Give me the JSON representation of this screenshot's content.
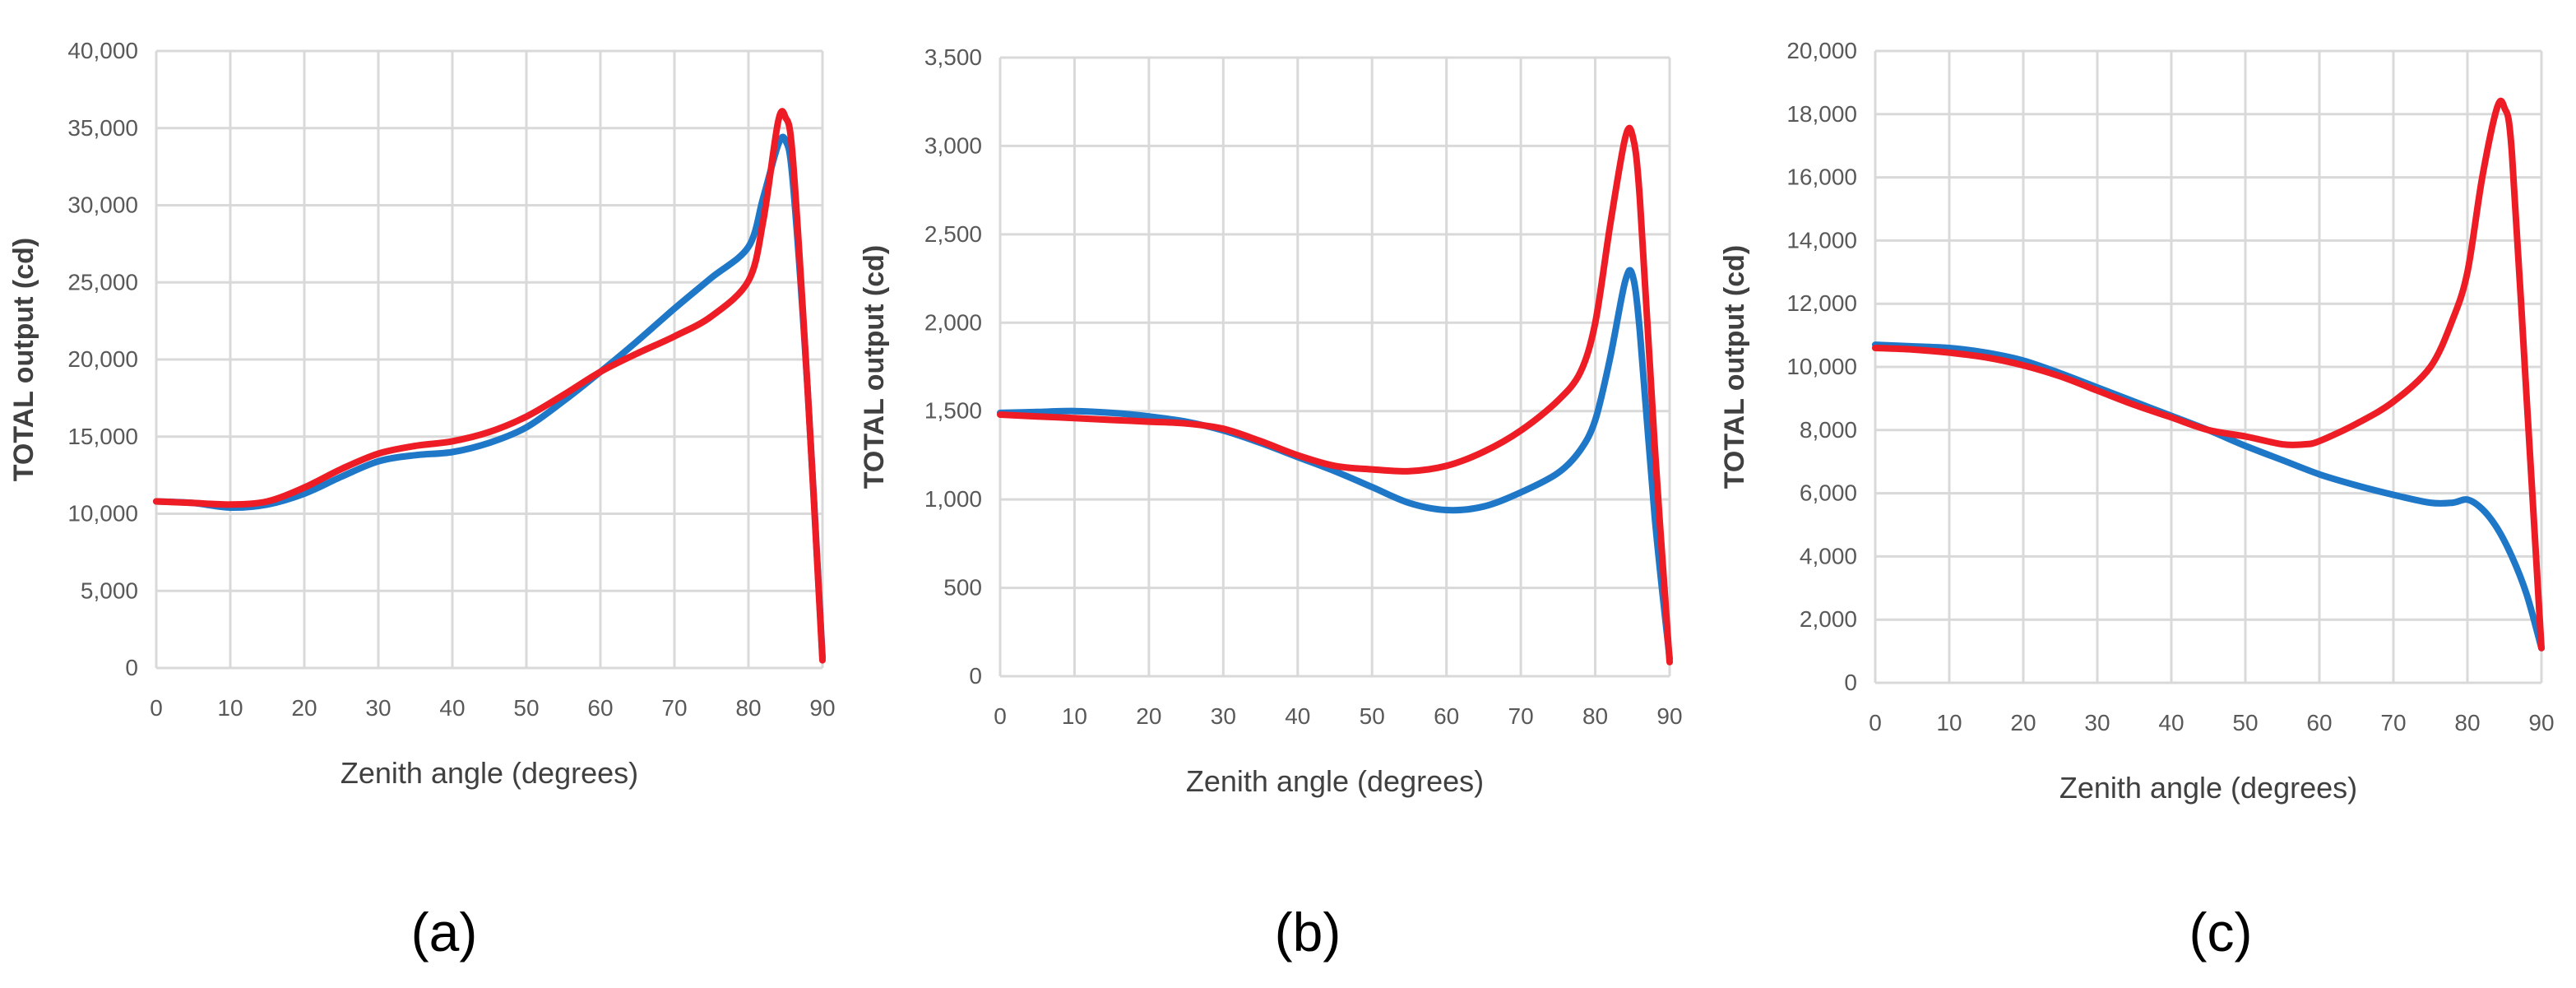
{
  "colors": {
    "blue": "#1f77c8",
    "red": "#ee1c25",
    "grid": "#d9d9d9",
    "tick_text": "#595959",
    "axis_title": "#404040"
  },
  "panel_labels": [
    "(a)",
    "(b)",
    "(c)"
  ],
  "chart_data": [
    {
      "type": "line",
      "xlabel": "Zenith angle (degrees)",
      "ylabel": "TOTAL output (cd)",
      "xlim": [
        0,
        90
      ],
      "ylim": [
        0,
        40000
      ],
      "xticks": [
        0,
        10,
        20,
        30,
        40,
        50,
        60,
        70,
        80,
        90
      ],
      "xtick_labels": [
        "0",
        "10",
        "20",
        "30",
        "40",
        "50",
        "60",
        "70",
        "80",
        "90"
      ],
      "yticks": [
        0,
        5000,
        10000,
        15000,
        20000,
        25000,
        30000,
        35000,
        40000
      ],
      "ytick_labels": [
        "0",
        "5,000",
        "10,000",
        "15,000",
        "20,000",
        "25,000",
        "30,000",
        "35,000",
        "40,000"
      ],
      "grid": true,
      "series": [
        {
          "color": "#1f77c8",
          "x": [
            0,
            5,
            10,
            15,
            20,
            25,
            30,
            35,
            40,
            45,
            50,
            55,
            60,
            65,
            70,
            75,
            80,
            82,
            84,
            85,
            86,
            88,
            90
          ],
          "y": [
            10800,
            10700,
            10400,
            10600,
            11300,
            12400,
            13400,
            13800,
            14000,
            14600,
            15600,
            17300,
            19200,
            21200,
            23300,
            25300,
            27300,
            30500,
            33900,
            34200,
            31500,
            18000,
            700
          ]
        },
        {
          "color": "#ee1c25",
          "x": [
            0,
            5,
            10,
            15,
            20,
            25,
            30,
            35,
            40,
            45,
            50,
            55,
            60,
            65,
            70,
            75,
            80,
            82,
            84,
            85,
            86,
            88,
            90
          ],
          "y": [
            10800,
            10700,
            10600,
            10800,
            11700,
            12900,
            13900,
            14400,
            14700,
            15300,
            16300,
            17700,
            19200,
            20400,
            21500,
            22800,
            25100,
            29000,
            35400,
            35700,
            33000,
            18000,
            500
          ]
        }
      ]
    },
    {
      "type": "line",
      "xlabel": "Zenith angle (degrees)",
      "ylabel": "TOTAL output (cd)",
      "xlim": [
        0,
        90
      ],
      "ylim": [
        0,
        3500
      ],
      "xticks": [
        0,
        10,
        20,
        30,
        40,
        50,
        60,
        70,
        80,
        90
      ],
      "xtick_labels": [
        "0",
        "10",
        "20",
        "30",
        "40",
        "50",
        "60",
        "70",
        "80",
        "90"
      ],
      "yticks": [
        0,
        500,
        1000,
        1500,
        2000,
        2500,
        3000,
        3500
      ],
      "ytick_labels": [
        "0",
        "500",
        "1,000",
        "1,500",
        "2,000",
        "2,500",
        "3,000",
        "3,500"
      ],
      "grid": true,
      "series": [
        {
          "color": "#1f77c8",
          "x": [
            0,
            5,
            10,
            15,
            20,
            25,
            30,
            35,
            40,
            45,
            50,
            55,
            60,
            65,
            70,
            75,
            78,
            80,
            82,
            84,
            85,
            86,
            88,
            90
          ],
          "y": [
            1490,
            1495,
            1500,
            1490,
            1470,
            1440,
            1390,
            1320,
            1240,
            1160,
            1070,
            980,
            940,
            960,
            1040,
            1150,
            1280,
            1450,
            1800,
            2230,
            2270,
            1950,
            900,
            100
          ]
        },
        {
          "color": "#ee1c25",
          "x": [
            0,
            5,
            10,
            15,
            20,
            25,
            30,
            35,
            40,
            45,
            50,
            55,
            60,
            65,
            70,
            75,
            78,
            80,
            82,
            84,
            85,
            86,
            88,
            90
          ],
          "y": [
            1480,
            1470,
            1460,
            1450,
            1440,
            1430,
            1400,
            1330,
            1250,
            1190,
            1170,
            1160,
            1190,
            1270,
            1390,
            1560,
            1720,
            2000,
            2550,
            3040,
            3060,
            2700,
            1300,
            80
          ]
        }
      ]
    },
    {
      "type": "line",
      "xlabel": "Zenith angle (degrees)",
      "ylabel": "TOTAL output (cd)",
      "xlim": [
        0,
        90
      ],
      "ylim": [
        0,
        20000
      ],
      "xticks": [
        0,
        10,
        20,
        30,
        40,
        50,
        60,
        70,
        80,
        90
      ],
      "xtick_labels": [
        "0",
        "10",
        "20",
        "30",
        "40",
        "50",
        "60",
        "70",
        "80",
        "90"
      ],
      "yticks": [
        0,
        2000,
        4000,
        6000,
        8000,
        10000,
        12000,
        14000,
        16000,
        18000,
        20000
      ],
      "ytick_labels": [
        "0",
        "2,000",
        "4,000",
        "6,000",
        "8,000",
        "10,000",
        "12,000",
        "14,000",
        "16,000",
        "18,000",
        "20,000"
      ],
      "grid": true,
      "series": [
        {
          "color": "#1f77c8",
          "x": [
            0,
            5,
            10,
            15,
            20,
            25,
            30,
            35,
            40,
            45,
            50,
            55,
            60,
            65,
            70,
            75,
            78,
            80,
            82,
            84,
            86,
            88,
            90
          ],
          "y": [
            10700,
            10650,
            10600,
            10450,
            10200,
            9800,
            9350,
            8900,
            8450,
            8000,
            7500,
            7050,
            6600,
            6250,
            5950,
            5700,
            5700,
            5800,
            5500,
            4900,
            4000,
            2800,
            1100
          ]
        },
        {
          "color": "#ee1c25",
          "x": [
            0,
            5,
            10,
            15,
            20,
            25,
            30,
            35,
            40,
            45,
            50,
            55,
            58,
            60,
            65,
            70,
            75,
            78,
            80,
            82,
            84,
            85,
            86,
            88,
            90
          ],
          "y": [
            10600,
            10550,
            10450,
            10300,
            10050,
            9700,
            9250,
            8800,
            8400,
            8000,
            7800,
            7550,
            7550,
            7650,
            8200,
            8900,
            10000,
            11500,
            13000,
            16000,
            18200,
            18200,
            16800,
            9000,
            1100
          ]
        }
      ]
    }
  ]
}
